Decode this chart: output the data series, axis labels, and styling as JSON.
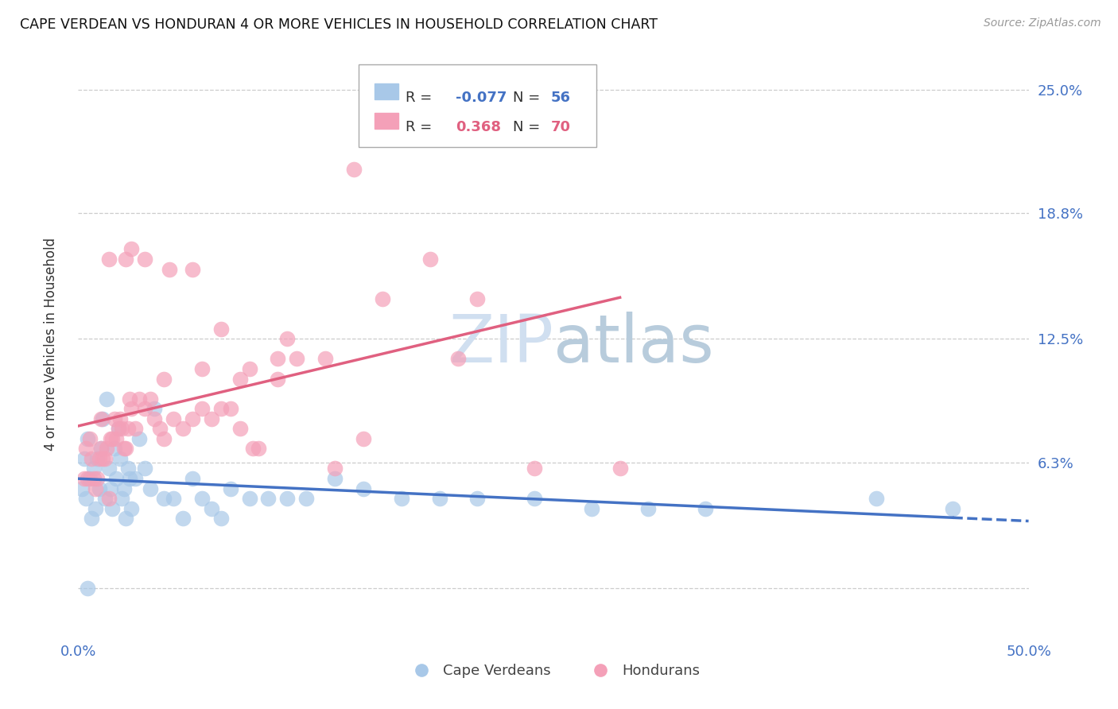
{
  "title": "CAPE VERDEAN VS HONDURAN 4 OR MORE VEHICLES IN HOUSEHOLD CORRELATION CHART",
  "source": "Source: ZipAtlas.com",
  "ylabel": "4 or more Vehicles in Household",
  "xlim": [
    0,
    50
  ],
  "ylim": [
    -2.5,
    27
  ],
  "r_cape": -0.077,
  "n_cape": 56,
  "r_honduran": 0.368,
  "n_honduran": 70,
  "cape_color": "#a8c8e8",
  "honduran_color": "#f4a0b8",
  "cape_line_color": "#4472c4",
  "honduran_line_color": "#e06080",
  "watermark_color": "#d0dff0",
  "cape_verdean_x": [
    0.2,
    0.3,
    0.4,
    0.5,
    0.6,
    0.7,
    0.8,
    0.9,
    1.0,
    1.1,
    1.2,
    1.3,
    1.4,
    1.5,
    1.6,
    1.7,
    1.8,
    1.9,
    2.0,
    2.1,
    2.2,
    2.3,
    2.4,
    2.5,
    2.6,
    2.7,
    2.8,
    3.0,
    3.2,
    3.5,
    3.8,
    4.0,
    4.5,
    5.0,
    5.5,
    6.0,
    6.5,
    7.0,
    7.5,
    8.0,
    9.0,
    10.0,
    11.0,
    12.0,
    13.5,
    15.0,
    17.0,
    19.0,
    21.0,
    24.0,
    27.0,
    30.0,
    33.0,
    42.0,
    46.0,
    0.5
  ],
  "cape_verdean_y": [
    5.0,
    6.5,
    4.5,
    7.5,
    5.5,
    3.5,
    6.0,
    4.0,
    6.5,
    5.0,
    7.0,
    8.5,
    4.5,
    9.5,
    6.0,
    5.0,
    4.0,
    7.0,
    5.5,
    8.0,
    6.5,
    4.5,
    5.0,
    3.5,
    6.0,
    5.5,
    4.0,
    5.5,
    7.5,
    6.0,
    5.0,
    9.0,
    4.5,
    4.5,
    3.5,
    5.5,
    4.5,
    4.0,
    3.5,
    5.0,
    4.5,
    4.5,
    4.5,
    4.5,
    5.5,
    5.0,
    4.5,
    4.5,
    4.5,
    4.5,
    4.0,
    4.0,
    4.0,
    4.5,
    4.0,
    0.0
  ],
  "honduran_x": [
    0.3,
    0.4,
    0.5,
    0.6,
    0.7,
    0.8,
    0.9,
    1.0,
    1.1,
    1.2,
    1.3,
    1.4,
    1.5,
    1.6,
    1.7,
    1.8,
    1.9,
    2.0,
    2.1,
    2.2,
    2.3,
    2.4,
    2.5,
    2.6,
    2.7,
    2.8,
    3.0,
    3.2,
    3.5,
    3.8,
    4.0,
    4.3,
    4.5,
    5.0,
    5.5,
    6.0,
    6.5,
    7.0,
    7.5,
    8.0,
    8.5,
    9.0,
    9.5,
    10.5,
    11.5,
    13.0,
    14.5,
    16.0,
    18.5,
    21.0,
    24.5,
    6.0,
    7.5,
    9.2,
    11.0,
    13.5,
    2.5,
    3.5,
    4.8,
    6.5,
    8.5,
    10.5,
    15.0,
    20.0,
    24.0,
    28.5,
    1.2,
    1.6,
    2.8,
    4.5
  ],
  "honduran_y": [
    5.5,
    7.0,
    5.5,
    7.5,
    6.5,
    5.5,
    5.0,
    5.5,
    6.5,
    7.0,
    6.5,
    6.5,
    7.0,
    4.5,
    7.5,
    7.5,
    8.5,
    7.5,
    8.0,
    8.5,
    8.0,
    7.0,
    7.0,
    8.0,
    9.5,
    9.0,
    8.0,
    9.5,
    9.0,
    9.5,
    8.5,
    8.0,
    7.5,
    8.5,
    8.0,
    8.5,
    9.0,
    8.5,
    9.0,
    9.0,
    10.5,
    11.0,
    7.0,
    10.5,
    11.5,
    11.5,
    21.0,
    14.5,
    16.5,
    14.5,
    22.5,
    16.0,
    13.0,
    7.0,
    12.5,
    6.0,
    16.5,
    16.5,
    16.0,
    11.0,
    8.0,
    11.5,
    7.5,
    11.5,
    6.0,
    6.0,
    8.5,
    16.5,
    17.0,
    10.5
  ]
}
